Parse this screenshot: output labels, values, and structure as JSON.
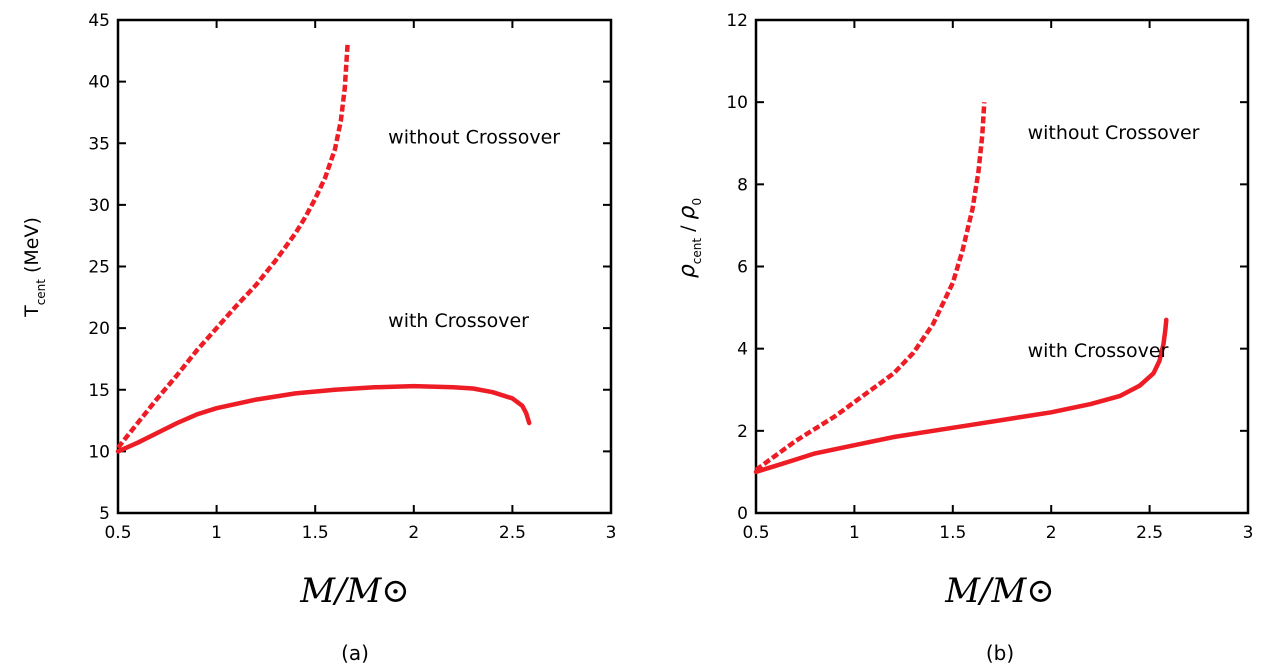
{
  "chart_data": [
    {
      "type": "line",
      "caption": "(a)",
      "xlabel": "M/M⊙",
      "ylabel": {
        "main": "T",
        "sub": "cent",
        "unit": "(MeV)"
      },
      "xlim": [
        0.5,
        3
      ],
      "ylim": [
        5,
        45
      ],
      "xticks": [
        0.5,
        1,
        1.5,
        2,
        2.5,
        3
      ],
      "xtick_labels": [
        "0.5",
        "1",
        "1.5",
        "2",
        "2.5",
        "3"
      ],
      "yticks": [
        5,
        10,
        15,
        20,
        25,
        30,
        35,
        40,
        45
      ],
      "ytick_labels": [
        "5",
        "10",
        "15",
        "20",
        "25",
        "30",
        "35",
        "40",
        "45"
      ],
      "grid": false,
      "annotations": [
        {
          "text": "without Crossover",
          "x": 1.87,
          "y": 35
        },
        {
          "text": "with Crossover",
          "x": 1.87,
          "y": 20.1
        }
      ],
      "series": [
        {
          "style": "dashed",
          "color": "#ee1c25",
          "x": [
            0.5,
            0.6,
            0.7,
            0.8,
            0.9,
            1.0,
            1.1,
            1.2,
            1.3,
            1.4,
            1.45,
            1.5,
            1.55,
            1.6,
            1.63,
            1.65,
            1.665
          ],
          "y": [
            10.3,
            12.3,
            14.3,
            16.2,
            18.2,
            20.0,
            21.8,
            23.5,
            25.5,
            27.7,
            29.0,
            30.5,
            32.2,
            34.5,
            36.8,
            39.5,
            43.2
          ]
        },
        {
          "style": "solid",
          "color": "#ee1c25",
          "x": [
            0.5,
            0.6,
            0.7,
            0.8,
            0.9,
            1.0,
            1.2,
            1.4,
            1.6,
            1.8,
            2.0,
            2.2,
            2.3,
            2.4,
            2.5,
            2.55,
            2.57,
            2.585
          ],
          "y": [
            10.0,
            10.7,
            11.5,
            12.3,
            13.0,
            13.5,
            14.2,
            14.7,
            15.0,
            15.2,
            15.3,
            15.2,
            15.1,
            14.8,
            14.3,
            13.7,
            13.1,
            12.3
          ]
        }
      ]
    },
    {
      "type": "line",
      "caption": "(b)",
      "xlabel": "M/M⊙",
      "ylabel": {
        "main": "ρ",
        "sub": "cent",
        "denom": "ρ",
        "denom_sub": "0"
      },
      "xlim": [
        0.5,
        3
      ],
      "ylim": [
        0,
        12
      ],
      "xticks": [
        0.5,
        1,
        1.5,
        2,
        2.5,
        3
      ],
      "xtick_labels": [
        "0.5",
        "1",
        "1.5",
        "2",
        "2.5",
        "3"
      ],
      "yticks": [
        0,
        2,
        4,
        6,
        8,
        10,
        12
      ],
      "ytick_labels": [
        "0",
        "2",
        "4",
        "6",
        "8",
        "10",
        "12"
      ],
      "grid": false,
      "annotations": [
        {
          "text": "without Crossover",
          "x": 1.88,
          "y": 9.1
        },
        {
          "text": "with Crossover",
          "x": 1.88,
          "y": 3.8
        }
      ],
      "series": [
        {
          "style": "dashed",
          "color": "#ee1c25",
          "x": [
            0.5,
            0.6,
            0.7,
            0.8,
            0.9,
            1.0,
            1.1,
            1.2,
            1.3,
            1.4,
            1.5,
            1.55,
            1.6,
            1.63,
            1.65,
            1.66
          ],
          "y": [
            1.05,
            1.4,
            1.75,
            2.05,
            2.35,
            2.7,
            3.05,
            3.4,
            3.9,
            4.6,
            5.6,
            6.4,
            7.4,
            8.3,
            9.2,
            10.0
          ]
        },
        {
          "style": "solid",
          "color": "#ee1c25",
          "x": [
            0.5,
            0.6,
            0.7,
            0.8,
            0.9,
            1.0,
            1.2,
            1.4,
            1.6,
            1.8,
            2.0,
            2.2,
            2.35,
            2.45,
            2.52,
            2.55,
            2.57,
            2.58,
            2.585
          ],
          "y": [
            1.0,
            1.15,
            1.3,
            1.45,
            1.55,
            1.65,
            1.85,
            2.0,
            2.15,
            2.3,
            2.45,
            2.65,
            2.85,
            3.1,
            3.4,
            3.7,
            4.1,
            4.45,
            4.7
          ]
        }
      ]
    }
  ]
}
